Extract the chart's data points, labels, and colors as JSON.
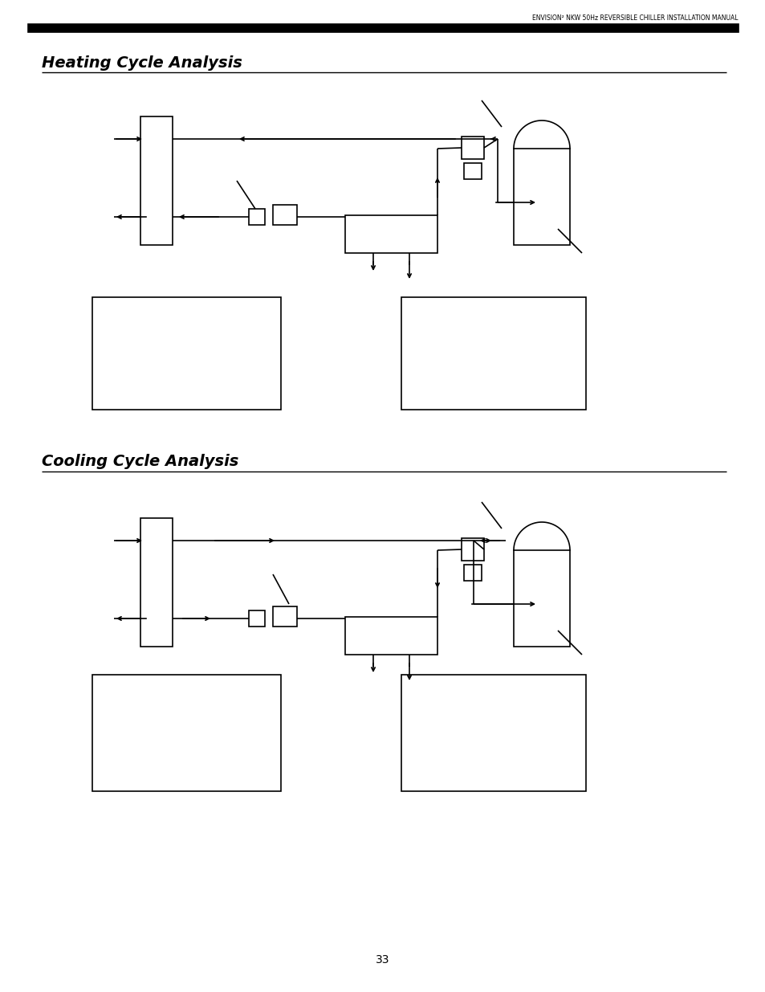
{
  "header_text": "ENVISION² NKW 50Hz REVERSIBLE CHILLER INSTALLATION MANUAL",
  "title1": "Heating Cycle Analysis",
  "title2": "Cooling Cycle Analysis",
  "page_number": "33",
  "bg_color": "#ffffff",
  "line_color": "#000000"
}
